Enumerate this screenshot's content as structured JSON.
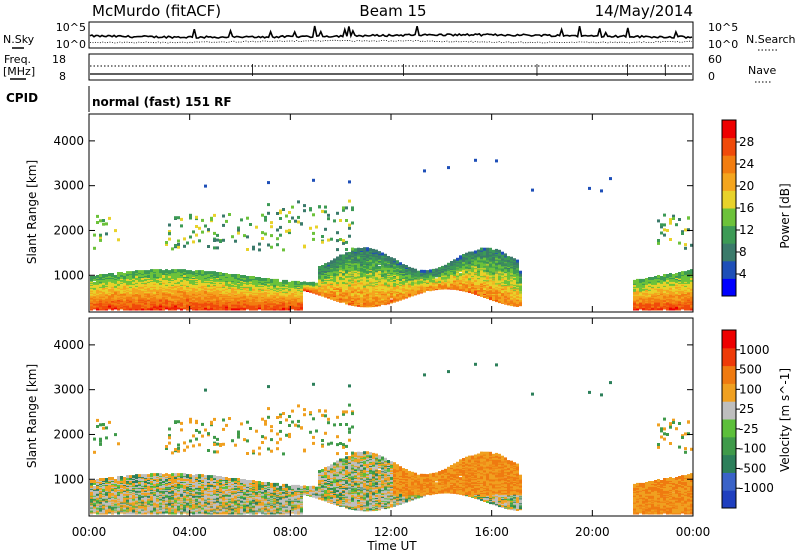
{
  "header": {
    "station": "McMurdo (fitACF)",
    "beam": "Beam 15",
    "date": "14/May/2014"
  },
  "noise_panel": {
    "left_label": "N.Sky",
    "right_label": "N.Search",
    "left_ticks": [
      "10^5",
      "10^0"
    ],
    "right_ticks": [
      "10^5",
      "10^0"
    ]
  },
  "freq_panel": {
    "left_label_top": "Freq.",
    "left_label_bottom": "[MHz]",
    "right_label": "Nave",
    "left_ticks": [
      "18",
      "8"
    ],
    "right_ticks": [
      "60",
      "0"
    ]
  },
  "cpid": {
    "label": "CPID",
    "value": "normal (fast) 151 RF"
  },
  "chart_data": [
    {
      "type": "heatmap",
      "name": "power",
      "ylabel": "Slant Range [km]",
      "yticks": [
        "4000",
        "3000",
        "2000",
        "1000"
      ],
      "ylim": [
        180,
        4600
      ],
      "xlim": [
        0,
        24
      ],
      "colorbar": {
        "label": "Power [dB]",
        "ticks": [
          "28",
          "24",
          "20",
          "16",
          "12",
          "8",
          "4"
        ],
        "range": [
          0,
          32
        ],
        "colors": [
          "#0000ff",
          "#1e4fb8",
          "#3a7a6a",
          "#3c9a55",
          "#6cc23a",
          "#e8d22a",
          "#f4a51e",
          "#f27d10",
          "#f04a0a",
          "#ee0000"
        ]
      }
    },
    {
      "type": "heatmap",
      "name": "velocity",
      "ylabel": "Slant Range [km]",
      "yticks": [
        "4000",
        "3000",
        "2000",
        "1000"
      ],
      "ylim": [
        180,
        4600
      ],
      "xlim": [
        0,
        24
      ],
      "xticks": [
        "00:00",
        "04:00",
        "08:00",
        "12:00",
        "16:00",
        "20:00",
        "00:00"
      ],
      "xlabel": "Time UT",
      "colorbar": {
        "label": "Velocity [m s^-1]",
        "ticks": [
          "1000",
          "500",
          "100",
          "25",
          "-25",
          "-100",
          "-500",
          "-1000"
        ],
        "colors": [
          "#1f3fbf",
          "#3a63c8",
          "#2c7f5a",
          "#3f9a4a",
          "#5cbf3a",
          "#bebebe",
          "#f0a020",
          "#ef7a10",
          "#ee3a08",
          "#ee0000"
        ]
      }
    }
  ]
}
